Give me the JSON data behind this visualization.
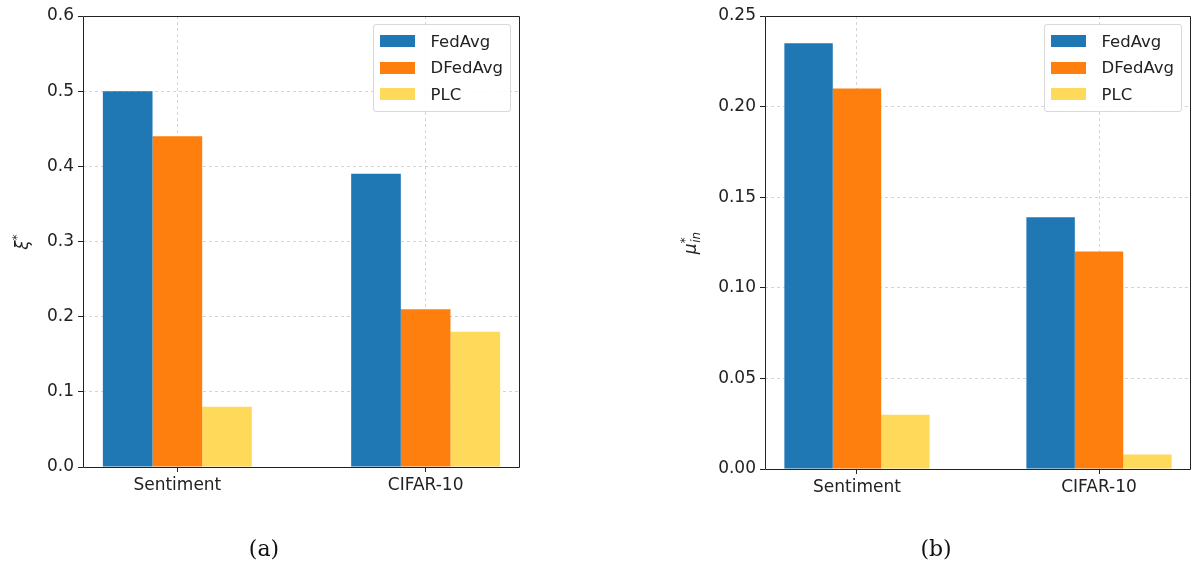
{
  "chart_data": [
    {
      "type": "bar",
      "categories": [
        "Sentiment",
        "CIFAR-10"
      ],
      "ylabel": "ξ$^{*}$",
      "series": [
        {
          "name": "FedAvg",
          "color": "#1f77b4",
          "values": [
            0.5,
            0.39
          ]
        },
        {
          "name": "DFedAvg",
          "color": "#ff7f0e",
          "values": [
            0.44,
            0.21
          ]
        },
        {
          "name": "PLC",
          "color": "#ffda5a",
          "values": [
            0.08,
            0.18
          ]
        }
      ],
      "ylim": [
        0,
        0.6
      ],
      "yticks": [
        {
          "value": 0,
          "label": "0.0"
        },
        0.1,
        0.2,
        0.3,
        0.4,
        0.5,
        0.6
      ],
      "grid": true,
      "legend": "top right",
      "annotations": [
        "(a)"
      ]
    },
    {
      "type": "bar",
      "categories": [
        "Sentiment",
        "CIFAR-10"
      ],
      "ylabel": "μ$^{*}$$_{in}$",
      "series": [
        {
          "name": "FedAvg",
          "color": "#1f77b4",
          "values": [
            0.235,
            0.139
          ]
        },
        {
          "name": "DFedAvg",
          "color": "#ff7f0e",
          "values": [
            0.21,
            0.12
          ]
        },
        {
          "name": "PLC",
          "color": "#ffda5a",
          "values": [
            0.03,
            0.008
          ]
        }
      ],
      "ylim": [
        0,
        0.25
      ],
      "yticks": [
        {
          "value": 0,
          "label": "0.00"
        },
        0.05,
        {
          "value": 0.1,
          "label": "0.10"
        },
        0.15,
        {
          "value": 0.2,
          "label": "0.20"
        },
        0.25
      ],
      "grid": true,
      "legend": "top right",
      "annotations": [
        "(b)"
      ]
    }
  ]
}
